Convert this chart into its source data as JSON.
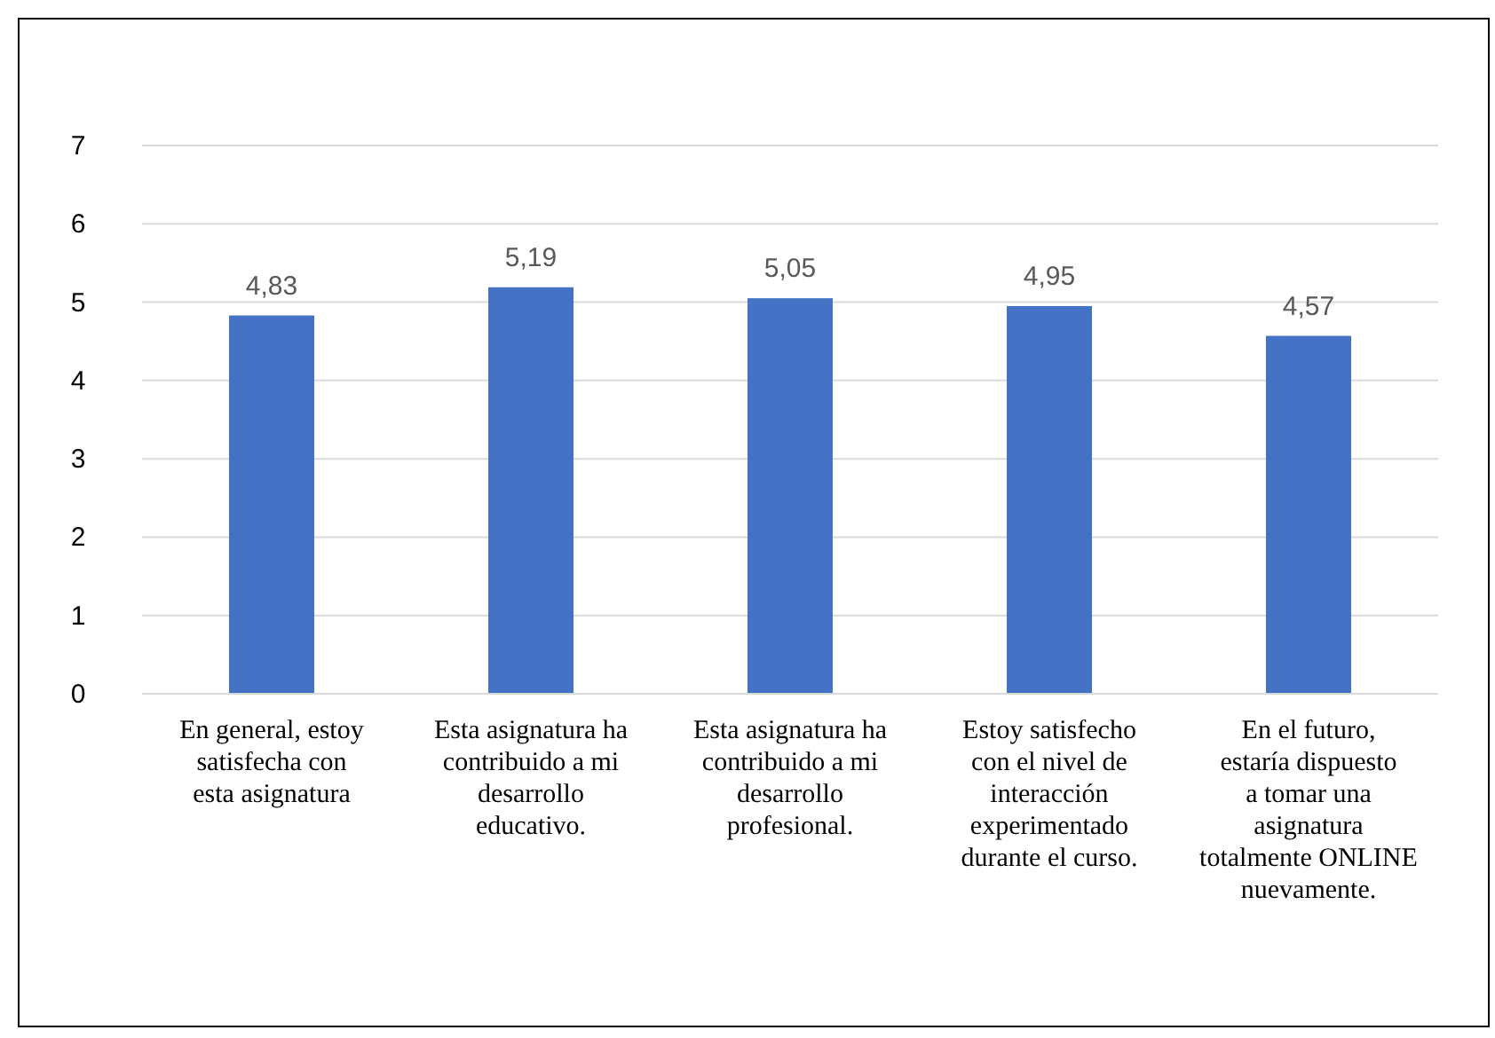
{
  "chart_data": {
    "type": "bar",
    "categories": [
      "En general, estoy satisfecha con esta asignatura",
      "Esta asignatura ha contribuido a mi desarrollo educativo.",
      "Esta asignatura ha contribuido a mi desarrollo profesional.",
      "Estoy satisfecho con el nivel de interacción experimentado durante el curso.",
      "En el futuro, estaría dispuesto a tomar una asignatura totalmente ONLINE nuevamente."
    ],
    "values": [
      4.83,
      5.19,
      5.05,
      4.95,
      4.57
    ],
    "value_labels": [
      "4,83",
      "5,19",
      "5,05",
      "4,95",
      "4,57"
    ],
    "color": "#4472c4",
    "ylim": [
      0,
      7
    ],
    "yticks": [
      0,
      1,
      2,
      3,
      4,
      5,
      6,
      7
    ],
    "grid": "y"
  }
}
